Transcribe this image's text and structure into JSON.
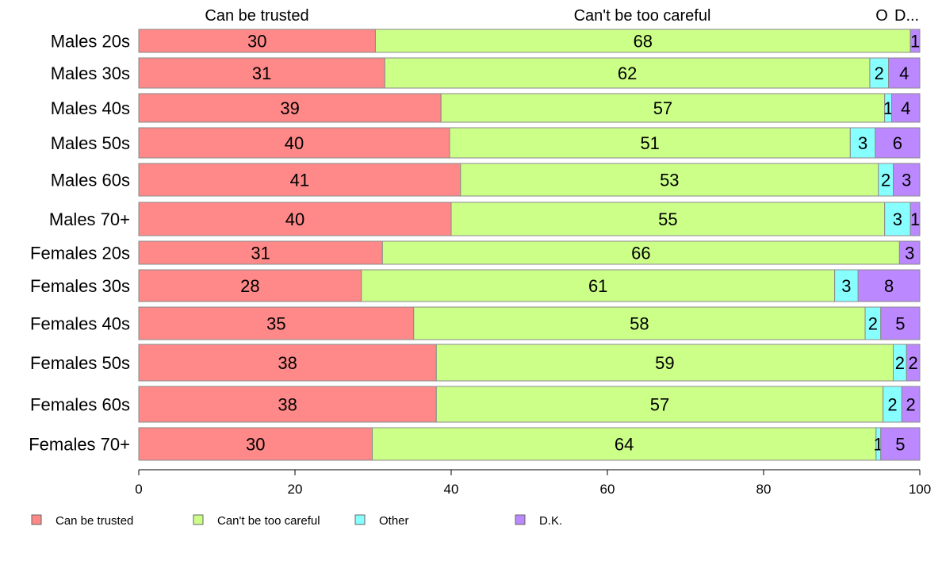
{
  "chart_data": {
    "type": "bar",
    "orientation": "horizontal-stacked-percent",
    "title": "",
    "xlabel": "",
    "ylabel": "",
    "xlim": [
      0,
      100
    ],
    "x_ticks": [
      "0",
      "20",
      "40",
      "60",
      "80",
      "100"
    ],
    "grid": false,
    "legend_position": "bottom",
    "top_labels": [
      "Can be trusted",
      "Can't be too careful",
      "O",
      "D..."
    ],
    "categories": [
      "Males 20s",
      "Males 30s",
      "Males 40s",
      "Males 50s",
      "Males 60s",
      "Males 70+",
      "Females 20s",
      "Females 30s",
      "Females 40s",
      "Females 50s",
      "Females 60s",
      "Females 70+"
    ],
    "series": [
      {
        "name": "Can be trusted",
        "color": "#FF8888",
        "values": [
          30.3,
          31.5,
          38.7,
          39.8,
          41.2,
          40.0,
          31.2,
          28.5,
          35.2,
          38.1,
          38.1,
          29.9
        ],
        "labels": [
          "30",
          "31",
          "39",
          "40",
          "41",
          "40",
          "31",
          "28",
          "35",
          "38",
          "38",
          "30"
        ]
      },
      {
        "name": "Can't be too careful",
        "color": "#CCFF88",
        "values": [
          68.5,
          62.1,
          56.8,
          51.3,
          53.5,
          55.5,
          66.2,
          60.6,
          57.8,
          58.5,
          57.2,
          64.5
        ],
        "labels": [
          "68",
          "62",
          "57",
          "51",
          "53",
          "55",
          "66",
          "61",
          "58",
          "59",
          "57",
          "64"
        ]
      },
      {
        "name": "Other",
        "color": "#88FFFF",
        "values": [
          0.0,
          2.4,
          0.9,
          3.2,
          1.9,
          3.3,
          0.0,
          3.0,
          2.0,
          1.7,
          2.4,
          0.6
        ],
        "labels": [
          "",
          "2",
          "1",
          "3",
          "2",
          "3",
          "",
          "3",
          "2",
          "2",
          "2",
          "1"
        ]
      },
      {
        "name": "D.K.",
        "color": "#BB88FF",
        "values": [
          1.2,
          4.0,
          3.6,
          5.7,
          3.4,
          1.2,
          2.6,
          7.9,
          5.0,
          1.7,
          2.3,
          5.0
        ],
        "labels": [
          "1",
          "4",
          "4",
          "6",
          "3",
          "1",
          "3",
          "8",
          "5",
          "2",
          "2",
          "5"
        ]
      }
    ]
  }
}
